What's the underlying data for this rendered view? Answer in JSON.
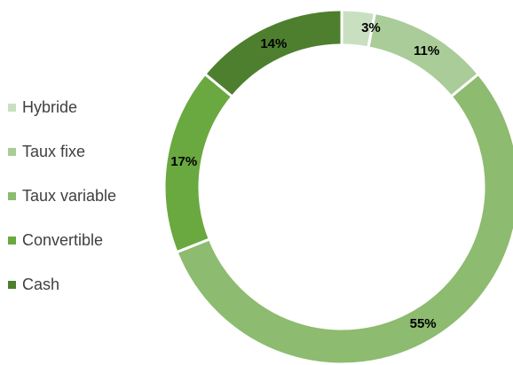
{
  "chart_data": {
    "type": "pie",
    "title": "",
    "categories": [
      "Hybride",
      "Taux fixe",
      "Taux variable",
      "Convertible",
      "Cash"
    ],
    "values": [
      3,
      11,
      55,
      17,
      14
    ],
    "value_labels": [
      "3%",
      "11%",
      "55%",
      "17%",
      "14%"
    ],
    "unit": "%",
    "colors": [
      "#C9E0C0",
      "#A9CC98",
      "#8DBB6F",
      "#6AA840",
      "#4E7F2E"
    ],
    "legend_position": "left",
    "donut": true
  }
}
